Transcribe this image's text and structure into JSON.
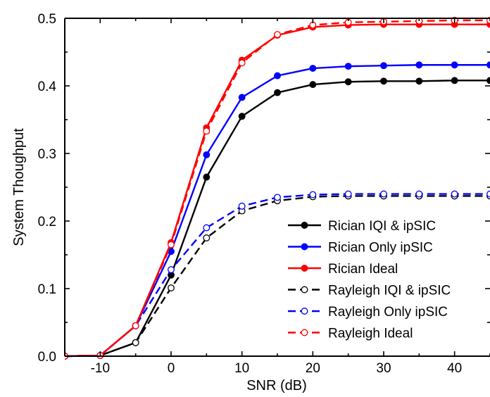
{
  "chart_data": {
    "type": "line",
    "title": "",
    "xlabel": "SNR (dB)",
    "ylabel": "System Thoughput",
    "xlim": [
      -15,
      45
    ],
    "ylim": [
      0.0,
      0.5
    ],
    "xticks": [
      -10,
      0,
      10,
      20,
      30,
      40
    ],
    "yticks": [
      0.0,
      0.1,
      0.2,
      0.3,
      0.4,
      0.5
    ],
    "xtick_labels": [
      "-10",
      "0",
      "10",
      "20",
      "30",
      "40"
    ],
    "ytick_labels": [
      "0.0",
      "0.1",
      "0.2",
      "0.3",
      "0.4",
      "0.5"
    ],
    "grid": false,
    "legend_position": "lower-right",
    "x": [
      -15,
      -10,
      -5,
      0,
      5,
      10,
      15,
      20,
      25,
      30,
      35,
      40,
      45
    ],
    "series": [
      {
        "name": "Rician IQI & ipSIC",
        "color": "#000000",
        "line_style": "solid",
        "marker": "filled-circle",
        "values": [
          0.0,
          0.001,
          0.02,
          0.12,
          0.265,
          0.355,
          0.39,
          0.402,
          0.406,
          0.407,
          0.407,
          0.408,
          0.408
        ]
      },
      {
        "name": "Rician Only ipSIC",
        "color": "#0000ff",
        "line_style": "solid",
        "marker": "filled-circle",
        "values": [
          0.0,
          0.001,
          0.045,
          0.155,
          0.298,
          0.383,
          0.415,
          0.426,
          0.429,
          0.43,
          0.431,
          0.431,
          0.431
        ]
      },
      {
        "name": "Rician Ideal",
        "color": "#ff0000",
        "line_style": "solid",
        "marker": "filled-circle",
        "values": [
          0.0,
          0.001,
          0.045,
          0.168,
          0.338,
          0.438,
          0.475,
          0.487,
          0.49,
          0.491,
          0.491,
          0.491,
          0.491
        ]
      },
      {
        "name": "Rayleigh IQI & ipSIC",
        "color": "#000000",
        "line_style": "dashed",
        "marker": "open-circle",
        "values": [
          0.0,
          0.001,
          0.02,
          0.101,
          0.175,
          0.215,
          0.23,
          0.236,
          0.237,
          0.237,
          0.237,
          0.237,
          0.237
        ]
      },
      {
        "name": "Rayleigh Only ipSIC",
        "color": "#0000ff",
        "line_style": "dashed",
        "marker": "open-circle",
        "values": [
          0.0,
          0.001,
          0.045,
          0.128,
          0.19,
          0.222,
          0.235,
          0.239,
          0.24,
          0.24,
          0.24,
          0.24,
          0.24
        ]
      },
      {
        "name": "Rayleigh Ideal",
        "color": "#ff0000",
        "line_style": "dashed",
        "marker": "open-circle",
        "values": [
          0.0,
          0.001,
          0.045,
          0.165,
          0.333,
          0.434,
          0.476,
          0.49,
          0.494,
          0.495,
          0.496,
          0.497,
          0.497
        ]
      }
    ]
  }
}
